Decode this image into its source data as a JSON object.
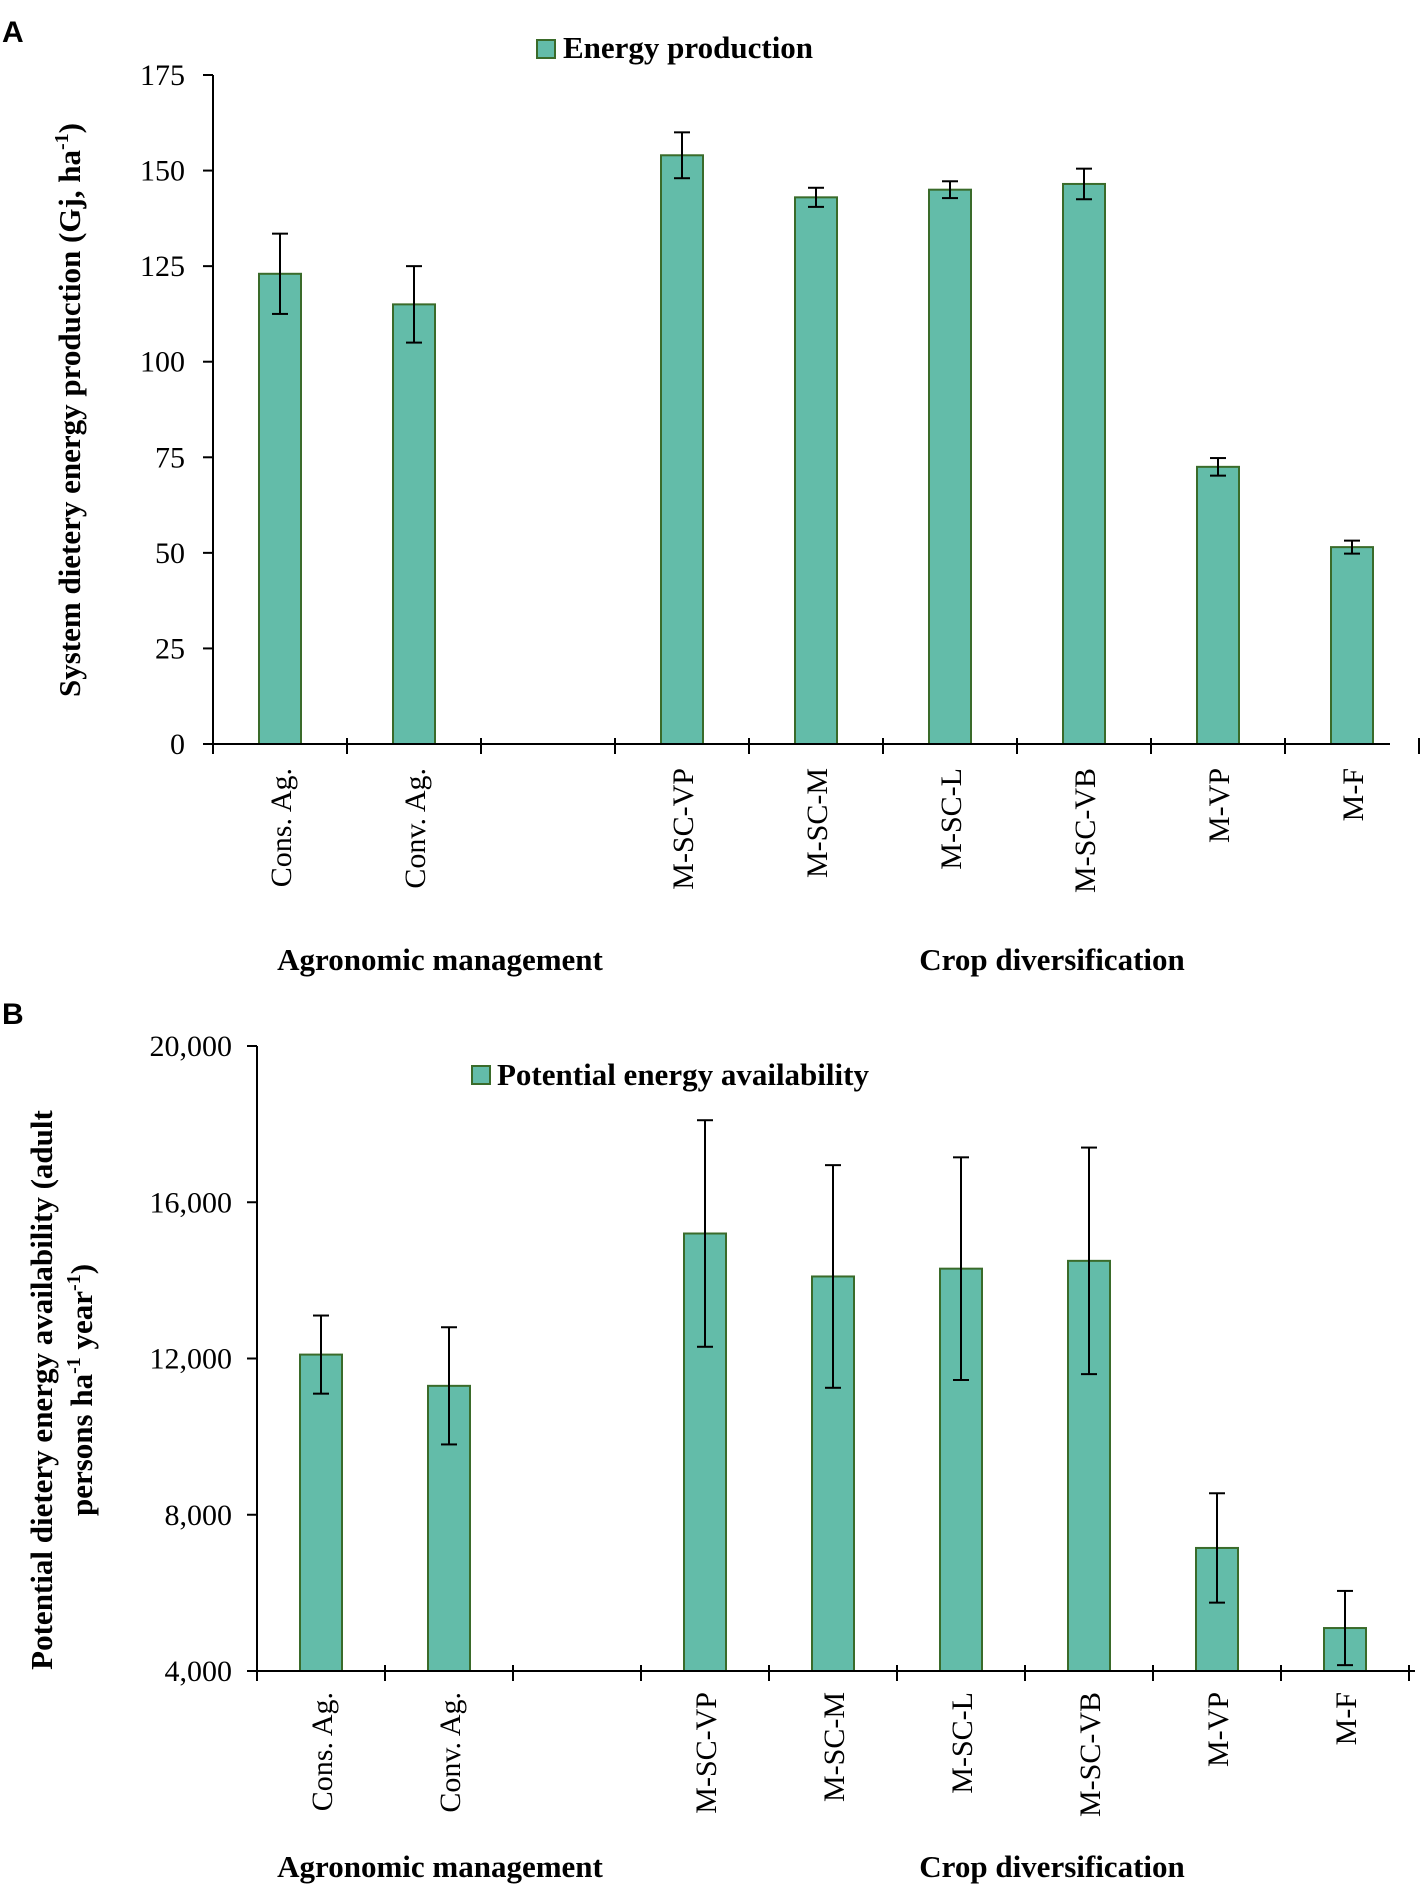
{
  "chart_data": [
    {
      "panel_label": "A",
      "type": "bar",
      "categories": [
        "Cons. Ag.",
        "Conv. Ag.",
        "",
        "M-SC-VP",
        "M-SC-M",
        "M-SC-L",
        "M-SC-VB",
        "M-VP",
        "M-F"
      ],
      "series": [
        {
          "name": "Energy production",
          "values": [
            123,
            115,
            null,
            154,
            143,
            145,
            146.5,
            72.5,
            51.5
          ],
          "errors": [
            10.5,
            10,
            null,
            6,
            2.5,
            2.2,
            4,
            2.3,
            1.7
          ]
        }
      ],
      "ylabel_main": "System dietery energy production (Gj, ha",
      "ylabel_sup": "-1",
      "ylabel_end": ")",
      "ylim": [
        0,
        175
      ],
      "yticks": [
        0,
        25,
        50,
        75,
        100,
        125,
        150,
        175
      ],
      "ytick_labels": [
        "0",
        "25",
        "50",
        "75",
        "100",
        "125",
        "150",
        "175"
      ],
      "groups": [
        "Agronomic management",
        "Crop diversification"
      ],
      "legend_position": "top-center",
      "colors": {
        "bar": "#63bca9",
        "edge": "#3a6b2a",
        "axis": "#000000"
      }
    },
    {
      "panel_label": "B",
      "type": "bar",
      "categories": [
        "Cons. Ag.",
        "Conv. Ag.",
        "",
        "M-SC-VP",
        "M-SC-M",
        "M-SC-L",
        "M-SC-VB",
        "M-VP",
        "M-F"
      ],
      "series": [
        {
          "name": "Potential energy availability",
          "values": [
            12100,
            11300,
            null,
            15200,
            14100,
            14300,
            14500,
            7150,
            5100
          ],
          "errors": [
            1000,
            1500,
            null,
            2900,
            2850,
            2850,
            2900,
            1400,
            950
          ]
        }
      ],
      "ylabel_line1": "Potential dietery energy availability (adult",
      "ylabel_line2_a": "persons ha",
      "ylabel_line2_sup1": "-1",
      "ylabel_line2_b": " year",
      "ylabel_line2_sup2": "-1",
      "ylabel_line2_end": ")",
      "ylim": [
        4000,
        20000
      ],
      "yticks": [
        4000,
        8000,
        12000,
        16000,
        20000
      ],
      "ytick_labels": [
        "4,000",
        "8,000",
        "12,000",
        "16,000",
        "20,000"
      ],
      "groups": [
        "Agronomic management",
        "Crop diversification"
      ],
      "legend_position": "top-center",
      "colors": {
        "bar": "#63bca9",
        "edge": "#3a6b2a",
        "axis": "#000000"
      }
    }
  ]
}
